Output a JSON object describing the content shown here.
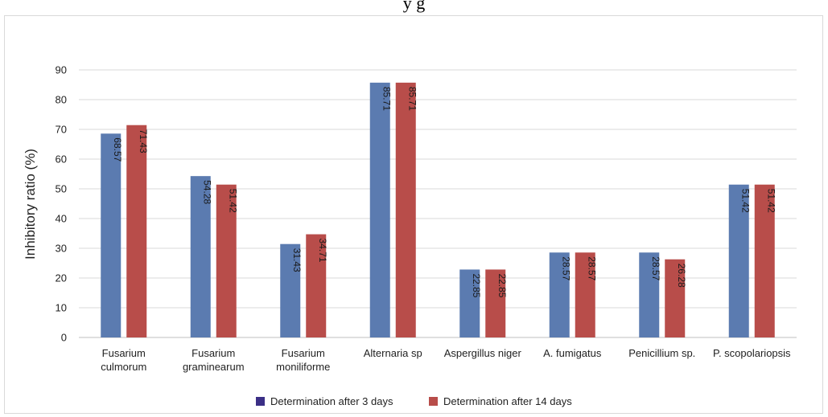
{
  "top_text": "y                                                                         g",
  "chart_data": {
    "type": "bar",
    "title": "",
    "xlabel": "",
    "ylabel": "Inhibitory ratio (%)",
    "ylim": [
      0,
      90
    ],
    "yticks": [
      0,
      10,
      20,
      30,
      40,
      50,
      60,
      70,
      80,
      90
    ],
    "grid": true,
    "legend_position": "bottom",
    "categories": [
      [
        "Fusarium",
        "culmorum"
      ],
      [
        "Fusarium",
        "graminearum"
      ],
      [
        "Fusarium",
        "moniliforme"
      ],
      [
        "Alternaria sp"
      ],
      [
        "Aspergillus niger"
      ],
      [
        "A. fumigatus"
      ],
      [
        "Penicillium sp."
      ],
      [
        "P. scopolariopsis"
      ]
    ],
    "series": [
      {
        "name": "Determination after 3 days",
        "color": "#5b7bb0",
        "legend_color": "#3b2f86",
        "values": [
          68.57,
          54.28,
          31.43,
          85.71,
          22.85,
          28.57,
          28.57,
          51.42
        ],
        "labels": [
          "68.57",
          "54.28",
          "31.43",
          "85.71",
          "22.85",
          "28.57",
          "28.57",
          "51.42"
        ]
      },
      {
        "name": "Determination after 14 days",
        "color": "#b84d4a",
        "legend_color": "#b84d4a",
        "values": [
          71.43,
          51.42,
          34.71,
          85.71,
          22.85,
          28.57,
          26.28,
          51.42
        ],
        "labels": [
          "71.43",
          "51.42",
          "34.71",
          "85.71",
          "22.85",
          "28.57",
          "26.28",
          "51.42"
        ]
      }
    ]
  }
}
